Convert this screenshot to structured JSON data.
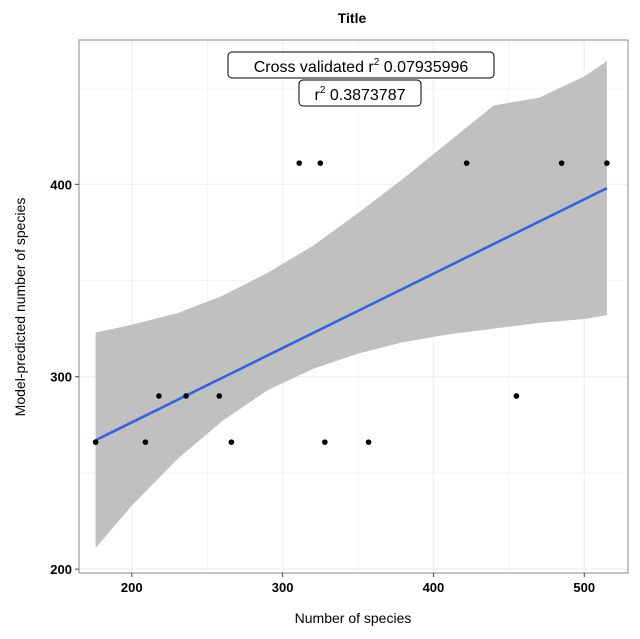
{
  "chart_data": {
    "type": "scatter",
    "title": "Title",
    "xlabel": "Number of species",
    "ylabel": "Model-predicted number of species",
    "xlim": [
      165,
      529
    ],
    "ylim": [
      198,
      475
    ],
    "xticks": [
      200,
      300,
      400,
      500
    ],
    "yticks": [
      200,
      300,
      400
    ],
    "grid": true,
    "points": [
      {
        "x": 176,
        "y": 266
      },
      {
        "x": 209,
        "y": 266
      },
      {
        "x": 218,
        "y": 290
      },
      {
        "x": 236,
        "y": 290
      },
      {
        "x": 258,
        "y": 290
      },
      {
        "x": 266,
        "y": 266
      },
      {
        "x": 311,
        "y": 411
      },
      {
        "x": 325,
        "y": 411
      },
      {
        "x": 328,
        "y": 266
      },
      {
        "x": 357,
        "y": 266
      },
      {
        "x": 422,
        "y": 411
      },
      {
        "x": 455,
        "y": 290
      },
      {
        "x": 485,
        "y": 411
      },
      {
        "x": 515,
        "y": 411
      }
    ],
    "fit_line": {
      "x": [
        176,
        515
      ],
      "y": [
        267,
        398
      ],
      "color": "#3366dd"
    },
    "confidence_band": {
      "x": [
        176,
        200,
        230,
        260,
        290,
        320,
        350,
        380,
        410,
        440,
        470,
        500,
        515
      ],
      "lower": [
        211,
        233,
        257,
        277,
        293,
        304,
        312,
        318,
        322,
        325,
        328,
        330,
        332
      ],
      "upper": [
        323,
        327,
        333,
        342,
        354,
        368,
        385,
        403,
        422,
        441,
        445,
        456,
        464
      ],
      "color": "#bdbdbd"
    },
    "annotations": [
      {
        "prefix": "Cross validated r",
        "sup": "2",
        "suffix": " 0.07935996"
      },
      {
        "prefix": "r",
        "sup": "2",
        "suffix": " 0.3873787"
      }
    ],
    "colors": {
      "points": "#000000",
      "panel_border": "#888888",
      "grid": "#eeeeee"
    }
  }
}
